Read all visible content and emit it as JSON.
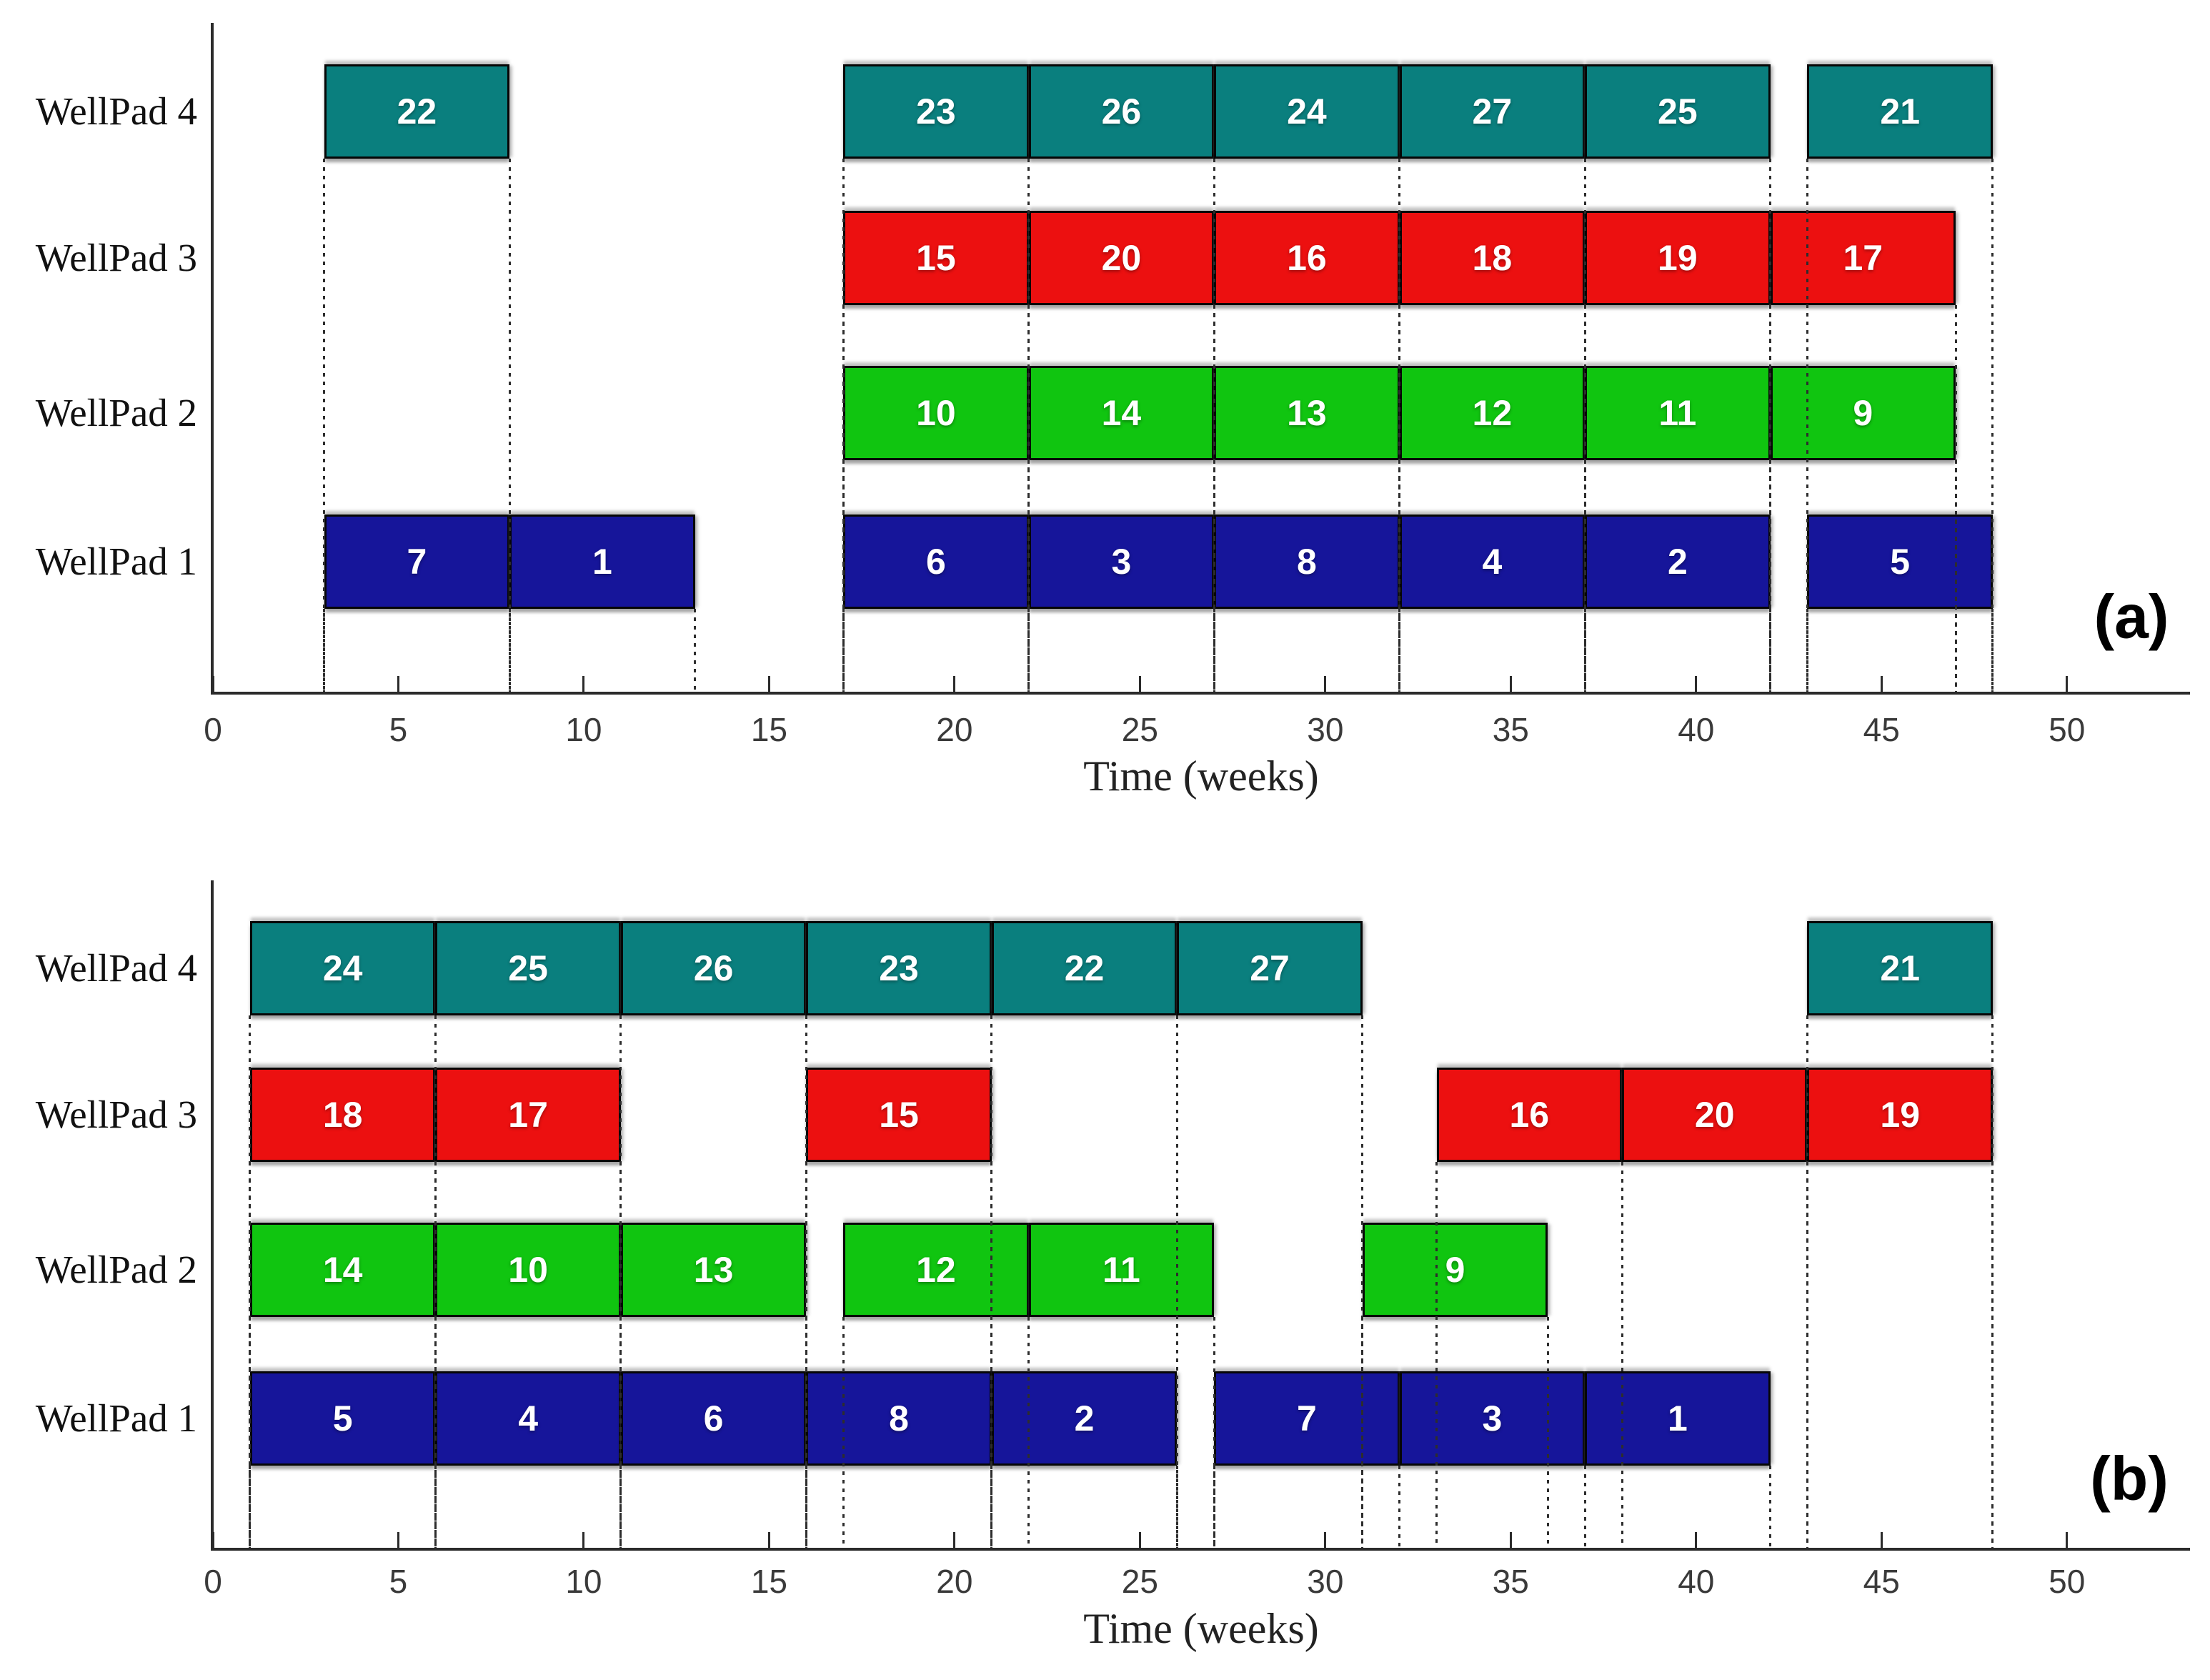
{
  "figure": {
    "xlabel": "Time (weeks)",
    "x_ticks": [
      0,
      5,
      10,
      15,
      20,
      25,
      30,
      35,
      40,
      45,
      50
    ],
    "x_max": 53.3,
    "row_labels": [
      "WellPad 4",
      "WellPad 3",
      "WellPad 2",
      "WellPad 1"
    ],
    "colors": {
      "wellpad4_teal": "#0a7f7e",
      "wellpad3_red": "#ec1010",
      "wellpad2_green": "#10c510",
      "wellpad1_blue": "#16159a",
      "axis": "#2b2b2b"
    }
  },
  "chart_data": [
    {
      "type": "gantt",
      "panel_label": "(a)",
      "xlabel": "Time (weeks)",
      "x_ticks": [
        0,
        5,
        10,
        15,
        20,
        25,
        30,
        35,
        40,
        45,
        50
      ],
      "x_max": 53.3,
      "rows": [
        {
          "label": "WellPad 4",
          "color": "#0a7f7e",
          "bars": [
            {
              "task": "22",
              "start": 3,
              "end": 8
            },
            {
              "task": "23",
              "start": 17,
              "end": 22
            },
            {
              "task": "26",
              "start": 22,
              "end": 27
            },
            {
              "task": "24",
              "start": 27,
              "end": 32
            },
            {
              "task": "27",
              "start": 32,
              "end": 37
            },
            {
              "task": "25",
              "start": 37,
              "end": 42
            },
            {
              "task": "21",
              "start": 43,
              "end": 48
            }
          ]
        },
        {
          "label": "WellPad 3",
          "color": "#ec1010",
          "bars": [
            {
              "task": "15",
              "start": 17,
              "end": 22
            },
            {
              "task": "20",
              "start": 22,
              "end": 27
            },
            {
              "task": "16",
              "start": 27,
              "end": 32
            },
            {
              "task": "18",
              "start": 32,
              "end": 37
            },
            {
              "task": "19",
              "start": 37,
              "end": 42
            },
            {
              "task": "17",
              "start": 42,
              "end": 47
            }
          ]
        },
        {
          "label": "WellPad 2",
          "color": "#10c510",
          "bars": [
            {
              "task": "10",
              "start": 17,
              "end": 22
            },
            {
              "task": "14",
              "start": 22,
              "end": 27
            },
            {
              "task": "13",
              "start": 27,
              "end": 32
            },
            {
              "task": "12",
              "start": 32,
              "end": 37
            },
            {
              "task": "11",
              "start": 37,
              "end": 42
            },
            {
              "task": "9",
              "start": 42,
              "end": 47
            }
          ]
        },
        {
          "label": "WellPad 1",
          "color": "#16159a",
          "bars": [
            {
              "task": "7",
              "start": 3,
              "end": 8
            },
            {
              "task": "1",
              "start": 8,
              "end": 13
            },
            {
              "task": "6",
              "start": 17,
              "end": 22
            },
            {
              "task": "3",
              "start": 22,
              "end": 27
            },
            {
              "task": "8",
              "start": 27,
              "end": 32
            },
            {
              "task": "4",
              "start": 32,
              "end": 37
            },
            {
              "task": "2",
              "start": 37,
              "end": 42
            },
            {
              "task": "5",
              "start": 43,
              "end": 48
            }
          ]
        }
      ]
    },
    {
      "type": "gantt",
      "panel_label": "(b)",
      "xlabel": "Time (weeks)",
      "x_ticks": [
        0,
        5,
        10,
        15,
        20,
        25,
        30,
        35,
        40,
        45,
        50
      ],
      "x_max": 53.3,
      "rows": [
        {
          "label": "WellPad 4",
          "color": "#0a7f7e",
          "bars": [
            {
              "task": "24",
              "start": 1,
              "end": 6
            },
            {
              "task": "25",
              "start": 6,
              "end": 11
            },
            {
              "task": "26",
              "start": 11,
              "end": 16
            },
            {
              "task": "23",
              "start": 16,
              "end": 21
            },
            {
              "task": "22",
              "start": 21,
              "end": 26
            },
            {
              "task": "27",
              "start": 26,
              "end": 31
            },
            {
              "task": "21",
              "start": 43,
              "end": 48
            }
          ]
        },
        {
          "label": "WellPad 3",
          "color": "#ec1010",
          "bars": [
            {
              "task": "18",
              "start": 1,
              "end": 6
            },
            {
              "task": "17",
              "start": 6,
              "end": 11
            },
            {
              "task": "15",
              "start": 16,
              "end": 21
            },
            {
              "task": "16",
              "start": 33,
              "end": 38
            },
            {
              "task": "20",
              "start": 38,
              "end": 43
            },
            {
              "task": "19",
              "start": 43,
              "end": 48
            }
          ]
        },
        {
          "label": "WellPad 2",
          "color": "#10c510",
          "bars": [
            {
              "task": "14",
              "start": 1,
              "end": 6
            },
            {
              "task": "10",
              "start": 6,
              "end": 11
            },
            {
              "task": "13",
              "start": 11,
              "end": 16
            },
            {
              "task": "12",
              "start": 17,
              "end": 22
            },
            {
              "task": "11",
              "start": 22,
              "end": 27
            },
            {
              "task": "9",
              "start": 31,
              "end": 36
            }
          ]
        },
        {
          "label": "WellPad 1",
          "color": "#16159a",
          "bars": [
            {
              "task": "5",
              "start": 1,
              "end": 6
            },
            {
              "task": "4",
              "start": 6,
              "end": 11
            },
            {
              "task": "6",
              "start": 11,
              "end": 16
            },
            {
              "task": "8",
              "start": 16,
              "end": 21
            },
            {
              "task": "2",
              "start": 21,
              "end": 26
            },
            {
              "task": "7",
              "start": 27,
              "end": 32
            },
            {
              "task": "3",
              "start": 32,
              "end": 37
            },
            {
              "task": "1",
              "start": 37,
              "end": 42
            }
          ]
        }
      ]
    }
  ]
}
